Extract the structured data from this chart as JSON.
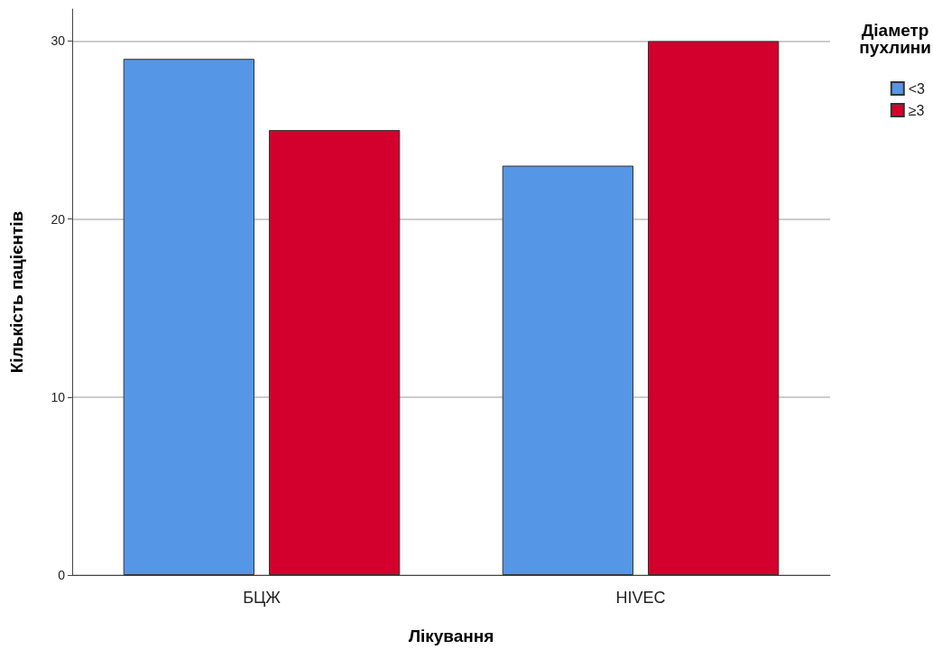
{
  "chart_data": {
    "type": "bar",
    "xlabel": "Лікування",
    "ylabel": "Кількість пацієнтів",
    "legend_title": "Діаметр\nпухлини",
    "categories": [
      "БЦЖ",
      "HIVEC"
    ],
    "series": [
      {
        "name": "<3",
        "color": "#5596e6",
        "values": [
          29,
          23
        ]
      },
      {
        "name": "≥3",
        "color": "#d3002d",
        "values": [
          25,
          30
        ]
      }
    ],
    "ylim": [
      0,
      31.8
    ],
    "yticks": [
      0,
      10,
      20,
      30
    ],
    "grid": "y",
    "legend": "top right"
  }
}
